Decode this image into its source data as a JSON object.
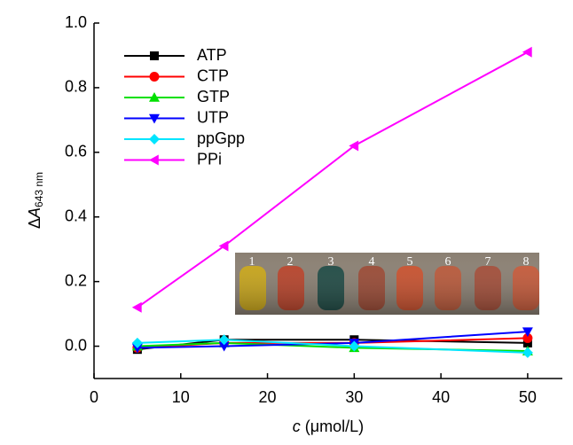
{
  "chart_data": {
    "type": "line",
    "xlabel": {
      "main": "c",
      "rest": " (μmol/L)"
    },
    "ylabel": {
      "prefix": "Δ",
      "main": "A",
      "subscript": "643 nm"
    },
    "x": [
      5,
      15,
      30,
      50
    ],
    "xlim": [
      0,
      54
    ],
    "xticks": [
      0,
      10,
      20,
      30,
      40,
      50
    ],
    "ylim": [
      -0.1,
      1.0
    ],
    "yticks": [
      {
        "value": 0,
        "label": "0.0"
      },
      {
        "value": 0.2,
        "label": "0.2"
      },
      {
        "value": 0.4,
        "label": "0.4"
      },
      {
        "value": 0.6,
        "label": "0.6"
      },
      {
        "value": 0.8,
        "label": "0.8"
      },
      {
        "value": 1.0,
        "label": "1.0"
      }
    ],
    "legend": "upper left",
    "series": [
      {
        "name": "ATP",
        "color": "#000000",
        "marker": "square",
        "values": [
          -0.01,
          0.02,
          0.02,
          0.01
        ]
      },
      {
        "name": "CTP",
        "color": "#ff0000",
        "marker": "circle",
        "values": [
          -0.005,
          0.01,
          0.01,
          0.025
        ]
      },
      {
        "name": "GTP",
        "color": "#00e000",
        "marker": "triangle-up",
        "values": [
          0.0,
          0.01,
          -0.005,
          -0.015
        ]
      },
      {
        "name": "UTP",
        "color": "#0000ff",
        "marker": "triangle-down",
        "values": [
          -0.005,
          0.0,
          0.01,
          0.045
        ]
      },
      {
        "name": "ppGpp",
        "color": "#00e5ff",
        "marker": "diamond",
        "values": [
          0.01,
          0.02,
          0.0,
          -0.02
        ]
      },
      {
        "name": "PPi",
        "color": "#ff00ff",
        "marker": "triangle-left",
        "values": [
          0.12,
          0.31,
          0.62,
          0.91
        ]
      }
    ],
    "inset_labels": [
      "1",
      "2",
      "3",
      "4",
      "5",
      "6",
      "7",
      "8"
    ]
  }
}
